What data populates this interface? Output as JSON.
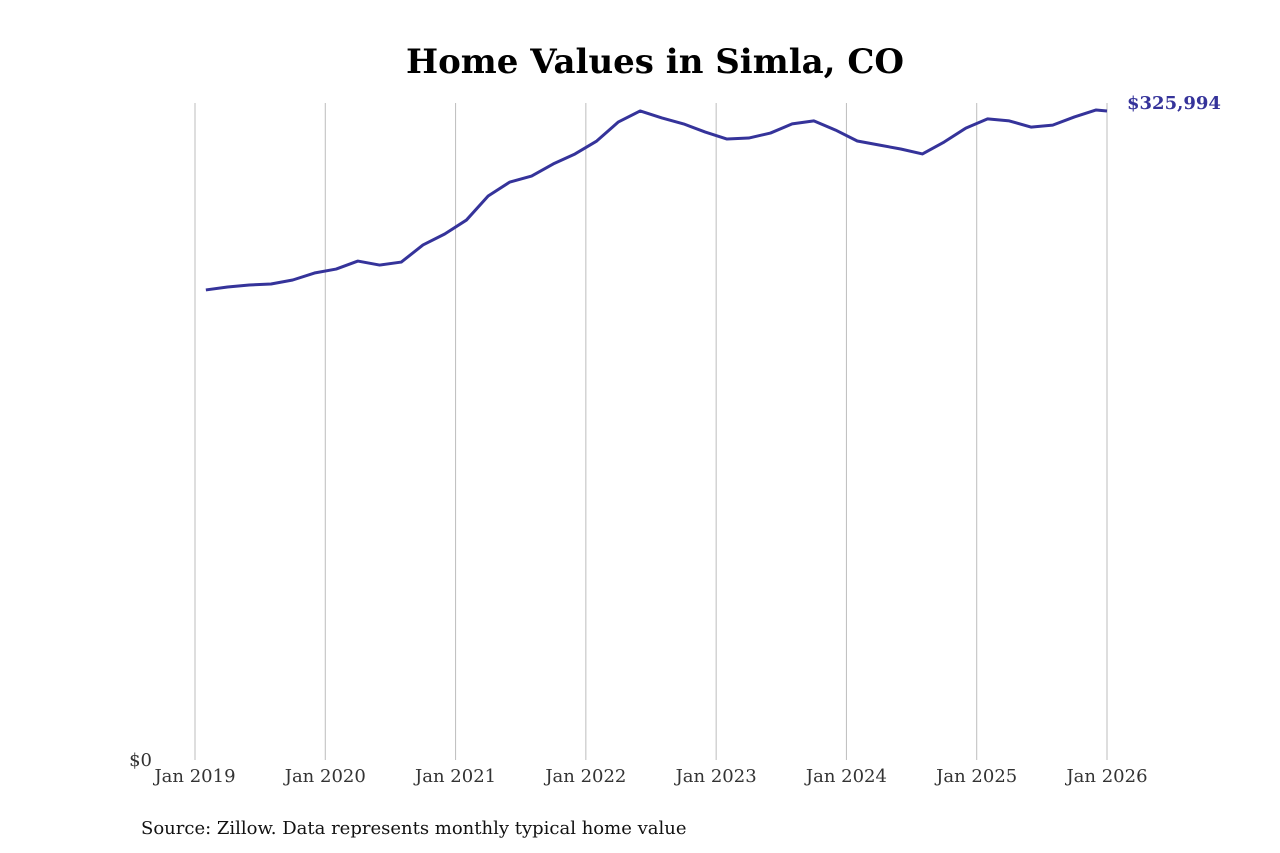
{
  "chart_data": {
    "type": "line",
    "title": "Home Values in Simla, CO",
    "source": "Source: Zillow. Data represents monthly typical home value",
    "x": [
      "2019-02",
      "2019-04",
      "2019-06",
      "2019-08",
      "2019-10",
      "2019-12",
      "2020-02",
      "2020-04",
      "2020-06",
      "2020-08",
      "2020-10",
      "2020-12",
      "2021-02",
      "2021-04",
      "2021-06",
      "2021-08",
      "2021-10",
      "2021-12",
      "2022-02",
      "2022-04",
      "2022-06",
      "2022-08",
      "2022-10",
      "2022-12",
      "2023-02",
      "2023-04",
      "2023-06",
      "2023-08",
      "2023-10",
      "2023-12",
      "2024-02",
      "2024-04",
      "2024-06",
      "2024-08",
      "2024-10",
      "2024-12",
      "2025-02",
      "2025-04",
      "2025-06",
      "2025-08",
      "2025-10",
      "2025-12",
      "2026-01"
    ],
    "series": [
      {
        "name": "Typical home value",
        "color": "#35339a",
        "values": [
          236100,
          237600,
          238600,
          239100,
          241100,
          244600,
          246600,
          250600,
          248600,
          250100,
          258700,
          264200,
          271200,
          283300,
          290300,
          293300,
          299400,
          304400,
          310900,
          320500,
          326000,
          322500,
          319500,
          315400,
          311900,
          312400,
          314900,
          319500,
          321000,
          316400,
          310900,
          308900,
          306900,
          304400,
          310400,
          317400,
          322000,
          321000,
          317900,
          318900,
          323000,
          326500,
          325994
        ],
        "value_labels": [
          null,
          null,
          null,
          null,
          null,
          null,
          null,
          null,
          null,
          null,
          null,
          null,
          null,
          null,
          null,
          null,
          null,
          null,
          null,
          null,
          null,
          null,
          null,
          null,
          null,
          null,
          null,
          null,
          null,
          null,
          null,
          null,
          null,
          null,
          null,
          null,
          null,
          null,
          null,
          null,
          null,
          null,
          "$325,994"
        ]
      }
    ],
    "xlim": [
      "2019-01",
      "2026-01"
    ],
    "xticks": [
      {
        "value": "2019-01",
        "label": "Jan 2019"
      },
      {
        "value": "2020-01",
        "label": "Jan 2020"
      },
      {
        "value": "2021-01",
        "label": "Jan 2021"
      },
      {
        "value": "2022-01",
        "label": "Jan 2022"
      },
      {
        "value": "2023-01",
        "label": "Jan 2023"
      },
      {
        "value": "2024-01",
        "label": "Jan 2024"
      },
      {
        "value": "2025-01",
        "label": "Jan 2025"
      },
      {
        "value": "2026-01",
        "label": "Jan 2026"
      }
    ],
    "ylim": [
      0,
      330000
    ],
    "yticks": [
      {
        "value": 0,
        "label": "$0"
      }
    ],
    "grid": "x"
  }
}
